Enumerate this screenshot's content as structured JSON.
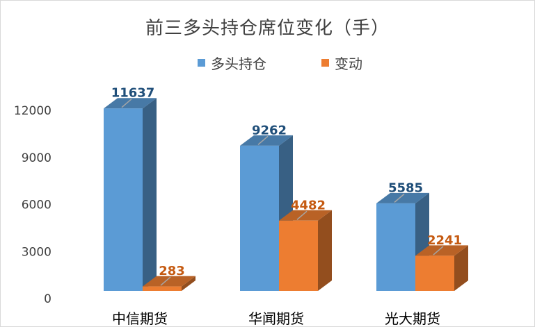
{
  "chart_data": {
    "type": "bar",
    "title": "前三多头持仓席位变化（手）",
    "categories": [
      "中信期货",
      "华闻期货",
      "光大期货"
    ],
    "series": [
      {
        "name": "多头持仓",
        "values": [
          11637,
          9262,
          5585
        ],
        "color": "#5b9bd5"
      },
      {
        "name": "变动",
        "values": [
          283,
          4482,
          2241
        ],
        "color": "#ed7d31"
      }
    ],
    "yticks": [
      0,
      3000,
      6000,
      9000,
      12000
    ],
    "ylim": [
      0,
      12000
    ],
    "legend_position": "top",
    "grid": false,
    "style": "3d-column"
  }
}
